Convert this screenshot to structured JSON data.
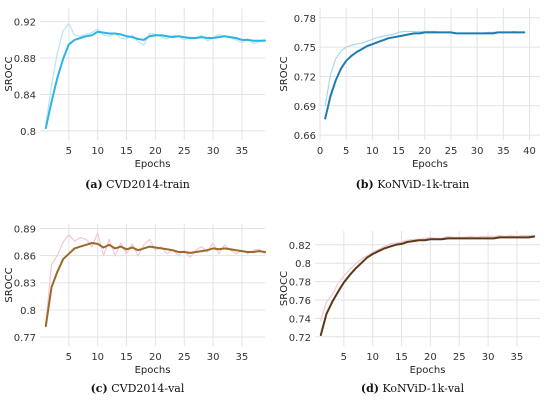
{
  "chart_data": [
    {
      "type": "line",
      "panel_tag": "(a)",
      "caption": "CVD2014-train",
      "xlabel": "Epochs",
      "ylabel": "SROCC",
      "xlim": [
        0,
        39
      ],
      "ylim": [
        0.79,
        0.935
      ],
      "xticks": [
        5,
        10,
        15,
        20,
        25,
        30,
        35
      ],
      "yticks": [
        0.8,
        0.84,
        0.88,
        0.92
      ],
      "ytick_labels": [
        "0.8",
        "0.84",
        "0.88",
        "0.92"
      ],
      "color": "#2bb5e0",
      "raw_color": "#b9e4f4",
      "series": [
        {
          "role": "smoothed",
          "x": [
            1,
            2,
            3,
            4,
            5,
            6,
            7,
            8,
            9,
            10,
            11,
            12,
            13,
            14,
            15,
            16,
            17,
            18,
            19,
            20,
            21,
            22,
            23,
            24,
            25,
            26,
            27,
            28,
            29,
            30,
            31,
            32,
            33,
            34,
            35,
            36,
            37,
            38,
            39
          ],
          "values": [
            0.803,
            0.832,
            0.858,
            0.879,
            0.895,
            0.9,
            0.902,
            0.904,
            0.905,
            0.909,
            0.908,
            0.907,
            0.907,
            0.906,
            0.904,
            0.903,
            0.901,
            0.9,
            0.904,
            0.905,
            0.905,
            0.904,
            0.903,
            0.904,
            0.903,
            0.902,
            0.902,
            0.903,
            0.902,
            0.902,
            0.903,
            0.904,
            0.903,
            0.902,
            0.9,
            0.9,
            0.899,
            0.899,
            0.899
          ]
        },
        {
          "role": "raw",
          "x": [
            1,
            2,
            3,
            4,
            5,
            6,
            7,
            8,
            9,
            10,
            11,
            12,
            13,
            14,
            15,
            16,
            17,
            18,
            19,
            20,
            21,
            22,
            23,
            24,
            25,
            26,
            27,
            28,
            29,
            30,
            31,
            32,
            33,
            34,
            35,
            36,
            37,
            38,
            39
          ],
          "values": [
            0.806,
            0.85,
            0.885,
            0.91,
            0.918,
            0.905,
            0.904,
            0.906,
            0.908,
            0.912,
            0.905,
            0.904,
            0.907,
            0.902,
            0.901,
            0.905,
            0.898,
            0.894,
            0.907,
            0.906,
            0.903,
            0.901,
            0.905,
            0.904,
            0.9,
            0.903,
            0.902,
            0.905,
            0.899,
            0.902,
            0.906,
            0.904,
            0.902,
            0.9,
            0.897,
            0.901,
            0.896,
            0.898,
            0.901
          ]
        }
      ]
    },
    {
      "type": "line",
      "panel_tag": "(b)",
      "caption": "KoNViD-1k-train",
      "xlabel": "Epochs",
      "ylabel": "SROCC",
      "xlim": [
        0,
        42
      ],
      "ylim": [
        0.655,
        0.79
      ],
      "xticks": [
        0,
        5,
        10,
        15,
        20,
        25,
        30,
        35,
        40
      ],
      "yticks": [
        0.66,
        0.69,
        0.72,
        0.75,
        0.78
      ],
      "ytick_labels": [
        "0.66",
        "0.69",
        "0.72",
        "0.75",
        "0.78"
      ],
      "color": "#1f7bb0",
      "raw_color": "#aad6ee",
      "series": [
        {
          "role": "smoothed",
          "x": [
            1,
            2,
            3,
            4,
            5,
            6,
            7,
            8,
            9,
            10,
            11,
            12,
            13,
            14,
            15,
            16,
            17,
            18,
            19,
            20,
            21,
            22,
            23,
            24,
            25,
            26,
            27,
            28,
            29,
            30,
            31,
            32,
            33,
            34,
            35,
            36,
            37,
            38,
            39
          ],
          "values": [
            0.677,
            0.7,
            0.716,
            0.728,
            0.736,
            0.741,
            0.745,
            0.748,
            0.751,
            0.753,
            0.755,
            0.757,
            0.759,
            0.76,
            0.761,
            0.762,
            0.763,
            0.764,
            0.764,
            0.765,
            0.765,
            0.765,
            0.765,
            0.765,
            0.765,
            0.764,
            0.764,
            0.764,
            0.764,
            0.764,
            0.764,
            0.764,
            0.764,
            0.765,
            0.765,
            0.765,
            0.765,
            0.765,
            0.765
          ]
        },
        {
          "role": "raw",
          "x": [
            1,
            2,
            3,
            4,
            5,
            6,
            7,
            8,
            9,
            10,
            11,
            12,
            13,
            14,
            15,
            16,
            17,
            18,
            19,
            20,
            21,
            22,
            23,
            24,
            25,
            26,
            27,
            28,
            29,
            30,
            31,
            32,
            33,
            34,
            35,
            36,
            37,
            38,
            39
          ],
          "values": [
            0.69,
            0.722,
            0.738,
            0.746,
            0.75,
            0.752,
            0.753,
            0.754,
            0.756,
            0.758,
            0.76,
            0.761,
            0.762,
            0.763,
            0.765,
            0.766,
            0.766,
            0.766,
            0.766,
            0.766,
            0.766,
            0.766,
            0.765,
            0.765,
            0.765,
            0.764,
            0.764,
            0.764,
            0.764,
            0.764,
            0.764,
            0.765,
            0.765,
            0.765,
            0.765,
            0.765,
            0.766,
            0.765,
            0.765
          ]
        }
      ]
    },
    {
      "type": "line",
      "panel_tag": "(c)",
      "caption": "CVD2014-val",
      "xlabel": "Epochs",
      "ylabel": "SROCC",
      "xlim": [
        0,
        39
      ],
      "ylim": [
        0.76,
        0.895
      ],
      "xticks": [
        5,
        10,
        15,
        20,
        25,
        30,
        35
      ],
      "yticks": [
        0.77,
        0.8,
        0.83,
        0.86,
        0.89
      ],
      "ytick_labels": [
        "0.77",
        "0.8",
        "0.83",
        "0.86",
        "0.89"
      ],
      "color": "#9a6a28",
      "raw_color": "#f3c6dc",
      "series": [
        {
          "role": "smoothed",
          "x": [
            1,
            2,
            3,
            4,
            5,
            6,
            7,
            8,
            9,
            10,
            11,
            12,
            13,
            14,
            15,
            16,
            17,
            18,
            19,
            20,
            21,
            22,
            23,
            24,
            25,
            26,
            27,
            28,
            29,
            30,
            31,
            32,
            33,
            34,
            35,
            36,
            37,
            38,
            39
          ],
          "values": [
            0.782,
            0.825,
            0.842,
            0.856,
            0.862,
            0.868,
            0.87,
            0.872,
            0.874,
            0.873,
            0.869,
            0.872,
            0.868,
            0.87,
            0.867,
            0.869,
            0.866,
            0.868,
            0.87,
            0.869,
            0.868,
            0.867,
            0.866,
            0.864,
            0.864,
            0.863,
            0.864,
            0.865,
            0.866,
            0.868,
            0.867,
            0.868,
            0.867,
            0.866,
            0.865,
            0.864,
            0.864,
            0.865,
            0.864
          ]
        },
        {
          "role": "raw",
          "x": [
            1,
            2,
            3,
            4,
            5,
            6,
            7,
            8,
            9,
            10,
            11,
            12,
            13,
            14,
            15,
            16,
            17,
            18,
            19,
            20,
            21,
            22,
            23,
            24,
            25,
            26,
            27,
            28,
            29,
            30,
            31,
            32,
            33,
            34,
            35,
            36,
            37,
            38,
            39
          ],
          "values": [
            0.784,
            0.85,
            0.86,
            0.875,
            0.883,
            0.876,
            0.88,
            0.878,
            0.87,
            0.885,
            0.86,
            0.878,
            0.86,
            0.874,
            0.862,
            0.873,
            0.86,
            0.872,
            0.878,
            0.866,
            0.87,
            0.862,
            0.866,
            0.86,
            0.866,
            0.858,
            0.866,
            0.87,
            0.864,
            0.874,
            0.862,
            0.872,
            0.866,
            0.862,
            0.866,
            0.862,
            0.866,
            0.867,
            0.862
          ]
        }
      ]
    },
    {
      "type": "line",
      "panel_tag": "(d)",
      "caption": "KoNViD-1k-val",
      "xlabel": "Epochs",
      "ylabel": "SROCC",
      "xlim": [
        0,
        39
      ],
      "ylim": [
        0.71,
        0.835
      ],
      "xticks": [
        5,
        10,
        15,
        20,
        25,
        30,
        35
      ],
      "yticks": [
        0.72,
        0.74,
        0.76,
        0.78,
        0.8,
        0.82
      ],
      "ytick_labels": [
        "0.72",
        "0.74",
        "0.76",
        "0.78",
        "0.8",
        "0.82"
      ],
      "color": "#5a3a14",
      "raw_color": "#f3c6dc",
      "series": [
        {
          "role": "smoothed",
          "x": [
            1,
            2,
            3,
            4,
            5,
            6,
            7,
            8,
            9,
            10,
            11,
            12,
            13,
            14,
            15,
            16,
            17,
            18,
            19,
            20,
            21,
            22,
            23,
            24,
            25,
            26,
            27,
            28,
            29,
            30,
            31,
            32,
            33,
            34,
            35,
            36,
            37,
            38
          ],
          "values": [
            0.722,
            0.745,
            0.758,
            0.769,
            0.779,
            0.787,
            0.794,
            0.8,
            0.806,
            0.81,
            0.813,
            0.816,
            0.818,
            0.82,
            0.821,
            0.823,
            0.824,
            0.825,
            0.825,
            0.826,
            0.826,
            0.826,
            0.827,
            0.827,
            0.827,
            0.827,
            0.827,
            0.827,
            0.827,
            0.827,
            0.827,
            0.828,
            0.828,
            0.828,
            0.828,
            0.828,
            0.828,
            0.829
          ]
        },
        {
          "role": "raw",
          "x": [
            1,
            2,
            3,
            4,
            5,
            6,
            7,
            8,
            9,
            10,
            11,
            12,
            13,
            14,
            15,
            16,
            17,
            18,
            19,
            20,
            21,
            22,
            23,
            24,
            25,
            26,
            27,
            28,
            29,
            30,
            31,
            32,
            33,
            34,
            35,
            36,
            37,
            38
          ],
          "values": [
            0.738,
            0.758,
            0.766,
            0.778,
            0.786,
            0.793,
            0.799,
            0.804,
            0.808,
            0.812,
            0.815,
            0.818,
            0.821,
            0.822,
            0.823,
            0.825,
            0.826,
            0.826,
            0.827,
            0.828,
            0.827,
            0.827,
            0.829,
            0.828,
            0.828,
            0.828,
            0.829,
            0.828,
            0.829,
            0.829,
            0.829,
            0.83,
            0.829,
            0.83,
            0.829,
            0.83,
            0.83,
            0.83
          ]
        }
      ]
    }
  ]
}
